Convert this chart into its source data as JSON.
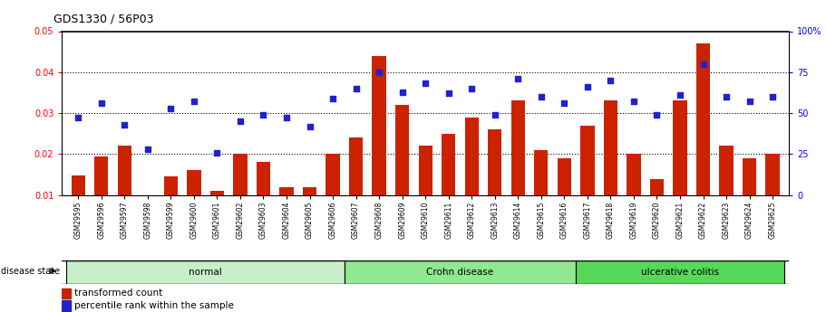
{
  "title": "GDS1330 / 56P03",
  "samples": [
    "GSM29595",
    "GSM29596",
    "GSM29597",
    "GSM29598",
    "GSM29599",
    "GSM29600",
    "GSM29601",
    "GSM29602",
    "GSM29603",
    "GSM29604",
    "GSM29605",
    "GSM29606",
    "GSM29607",
    "GSM29608",
    "GSM29609",
    "GSM29610",
    "GSM29611",
    "GSM29612",
    "GSM29613",
    "GSM29614",
    "GSM29615",
    "GSM29616",
    "GSM29617",
    "GSM29618",
    "GSM29619",
    "GSM29620",
    "GSM29621",
    "GSM29622",
    "GSM29623",
    "GSM29624",
    "GSM29625"
  ],
  "bar_values": [
    0.0148,
    0.0195,
    0.022,
    0.01,
    0.0145,
    0.016,
    0.011,
    0.02,
    0.018,
    0.012,
    0.012,
    0.02,
    0.024,
    0.044,
    0.032,
    0.022,
    0.025,
    0.029,
    0.026,
    0.033,
    0.021,
    0.019,
    0.027,
    0.033,
    0.02,
    0.014,
    0.033,
    0.047,
    0.022,
    0.019,
    0.02
  ],
  "scatter_values": [
    47,
    56,
    43,
    28,
    53,
    57,
    26,
    45,
    49,
    47,
    42,
    59,
    65,
    75,
    63,
    68,
    62,
    65,
    49,
    71,
    60,
    56,
    66,
    70,
    57,
    49,
    61,
    80,
    60,
    57,
    60
  ],
  "groups": [
    {
      "label": "normal",
      "start": 0,
      "end": 11,
      "color": "#c8f0c8"
    },
    {
      "label": "Crohn disease",
      "start": 12,
      "end": 21,
      "color": "#90e890"
    },
    {
      "label": "ulcerative colitis",
      "start": 22,
      "end": 30,
      "color": "#58d858"
    }
  ],
  "bar_color": "#cc2200",
  "scatter_color": "#2222cc",
  "ylim_left": [
    0.01,
    0.05
  ],
  "ylim_right": [
    0,
    100
  ],
  "yticks_left": [
    0.01,
    0.02,
    0.03,
    0.04,
    0.05
  ],
  "yticks_right": [
    0,
    25,
    50,
    75,
    100
  ],
  "disease_state_label": "disease state",
  "legend_bar_label": "transformed count",
  "legend_scatter_label": "percentile rank within the sample",
  "background_color": "#ffffff"
}
